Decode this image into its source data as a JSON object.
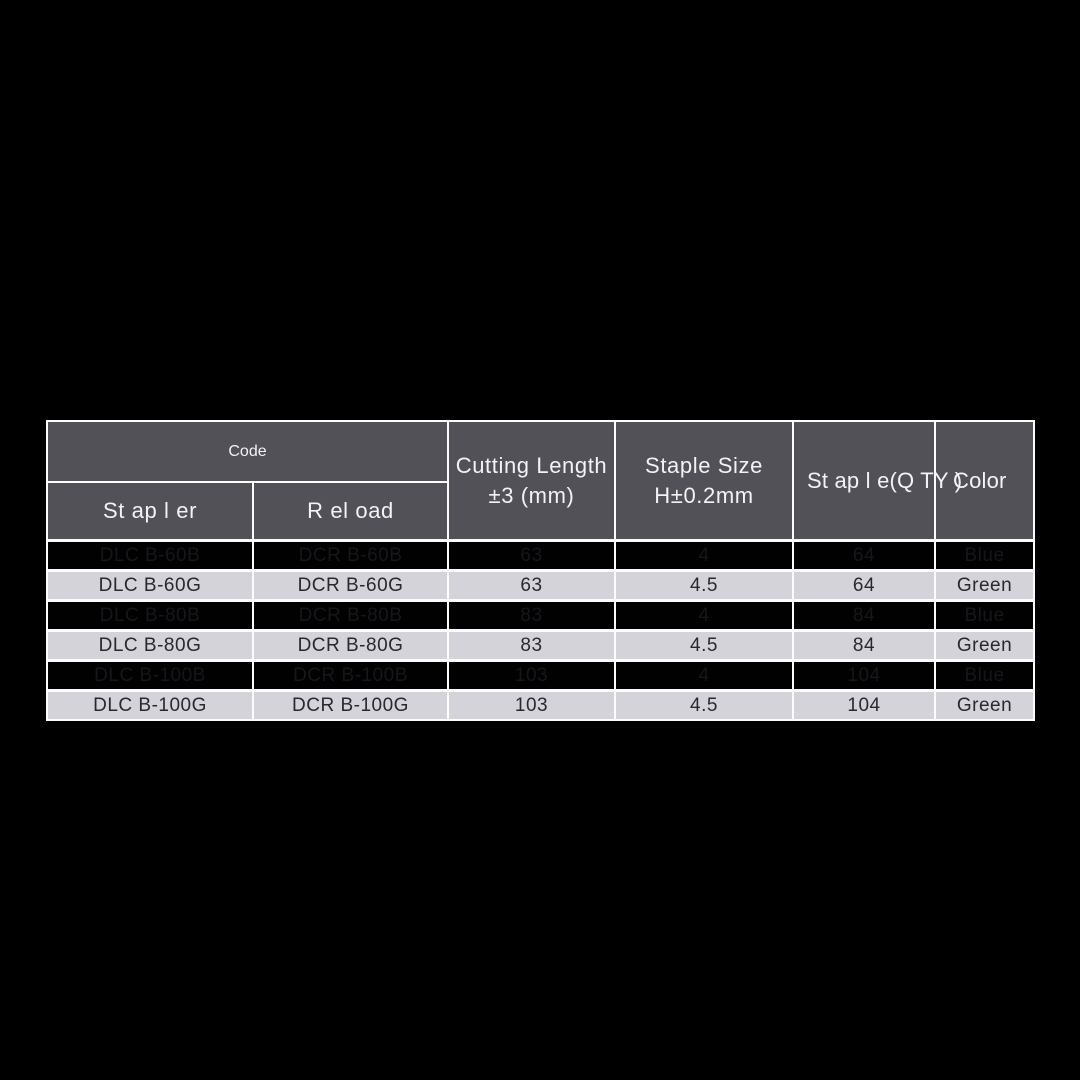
{
  "table": {
    "header": {
      "code_label": "Code",
      "stapler_label": "St ap l er",
      "reload_label": "R el oad",
      "cutting_length_line1": "Cutting Length",
      "cutting_length_line2": "±3 (mm)",
      "staple_size_line1": "Staple Size",
      "staple_size_line2": "H±0.2mm",
      "staple_qty_label": "St ap l e(Q TY )",
      "color_label": "Color"
    },
    "column_keys": [
      "stapler",
      "reload",
      "cutting_length",
      "staple_size",
      "staple_qty",
      "color"
    ],
    "rows": [
      {
        "variant": "dark",
        "stapler": "DLC B-60B",
        "reload": "DCR B-60B",
        "cutting_length": "63",
        "staple_size": "4",
        "staple_qty": "64",
        "color": "Blue"
      },
      {
        "variant": "light",
        "stapler": "DLC B-60G",
        "reload": "DCR B-60G",
        "cutting_length": "63",
        "staple_size": "4.5",
        "staple_qty": "64",
        "color": "Green"
      },
      {
        "variant": "dark",
        "stapler": "DLC B-80B",
        "reload": "DCR B-80B",
        "cutting_length": "83",
        "staple_size": "4",
        "staple_qty": "84",
        "color": "Blue"
      },
      {
        "variant": "light",
        "stapler": "DLC B-80G",
        "reload": "DCR B-80G",
        "cutting_length": "83",
        "staple_size": "4.5",
        "staple_qty": "84",
        "color": "Green"
      },
      {
        "variant": "dark",
        "stapler": "DLC B-100B",
        "reload": "DCR B-100B",
        "cutting_length": "103",
        "staple_size": "4",
        "staple_qty": "104",
        "color": "Blue"
      },
      {
        "variant": "light",
        "stapler": "DLC B-100G",
        "reload": "DCR B-100G",
        "cutting_length": "103",
        "staple_size": "4.5",
        "staple_qty": "104",
        "color": "Green"
      }
    ],
    "colors": {
      "page_bg": "#000000",
      "header_bg": "#525157",
      "header_text": "#f3f2f5",
      "row_dark_bg": "#010102",
      "row_dark_text": "#17171b",
      "row_light_bg": "#d4d3d9",
      "row_light_text": "#29292d",
      "grid_line": "#fcfcfd"
    }
  }
}
